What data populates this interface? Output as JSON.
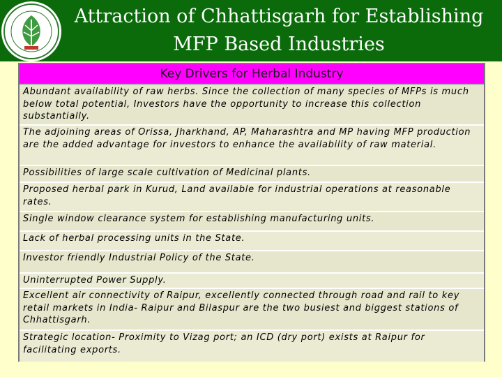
{
  "header": {
    "title_line1": "Attraction of Chhattisgarh for Establishing",
    "title_line2": "MFP Based Industries",
    "background": "#0b6b0b",
    "logo_icon": "leaf-emblem-icon"
  },
  "table": {
    "heading": "Key Drivers for Herbal Industry",
    "heading_color": "#ff00ff",
    "rows": [
      "Abundant availability of raw herbs. Since the collection of many species of MFPs is much below total potential, Investors have the opportunity to increase this collection substantially.",
      "The adjoining areas of Orissa, Jharkhand, AP, Maharashtra and MP having MFP production are the added advantage for investors to enhance the availability of raw material.",
      "Possibilities of large scale cultivation of Medicinal plants.",
      "Proposed herbal park in Kurud, Land available for industrial operations at reasonable rates.",
      "Single window clearance system for establishing manufacturing units.",
      "Lack of herbal processing units in the State.",
      "Investor friendly Industrial Policy of the State.",
      "Uninterrupted Power Supply.",
      "Excellent air connectivity of Raipur, excellently connected through road and rail to key retail markets in India- Raipur and Bilaspur are the two busiest and biggest stations of Chhattisgarh.",
      "Strategic location- Proximity to Vizag port; an ICD (dry port) exists at Raipur for facilitating exports."
    ]
  }
}
